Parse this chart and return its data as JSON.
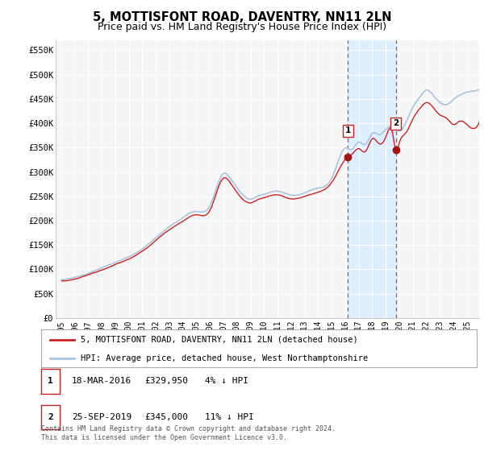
{
  "title": "5, MOTTISFONT ROAD, DAVENTRY, NN11 2LN",
  "subtitle": "Price paid vs. HM Land Registry's House Price Index (HPI)",
  "title_fontsize": 10.5,
  "subtitle_fontsize": 9,
  "background_color": "#ffffff",
  "plot_bg_color": "#f5f5f5",
  "grid_color": "#ffffff",
  "hpi_color": "#aac4e0",
  "price_color": "#cc2222",
  "marker_color": "#aa1111",
  "vline_color": "#cc4444",
  "highlight_color": "#ddeeff",
  "legend_label_price": "5, MOTTISFONT ROAD, DAVENTRY, NN11 2LN (detached house)",
  "legend_label_hpi": "HPI: Average price, detached house, West Northamptonshire",
  "transaction1_label": "1",
  "transaction2_label": "2",
  "ylim": [
    0,
    570000
  ],
  "ylabel_ticks": [
    0,
    50000,
    100000,
    150000,
    200000,
    250000,
    300000,
    350000,
    400000,
    450000,
    500000,
    550000
  ],
  "ylabel_labels": [
    "£0",
    "£50K",
    "£100K",
    "£150K",
    "£200K",
    "£250K",
    "£300K",
    "£350K",
    "£400K",
    "£450K",
    "£500K",
    "£550K"
  ],
  "xtick_years": [
    1995,
    1996,
    1997,
    1998,
    1999,
    2000,
    2001,
    2002,
    2003,
    2004,
    2005,
    2006,
    2007,
    2008,
    2009,
    2010,
    2011,
    2012,
    2013,
    2014,
    2015,
    2016,
    2017,
    2018,
    2019,
    2020,
    2021,
    2022,
    2023,
    2024,
    2025
  ],
  "footer": "Contains HM Land Registry data © Crown copyright and database right 2024.\nThis data is licensed under the Open Government Licence v3.0.",
  "transaction1_year": 2016.21,
  "transaction1_price": 329950,
  "transaction2_year": 2019.73,
  "transaction2_price": 345000
}
